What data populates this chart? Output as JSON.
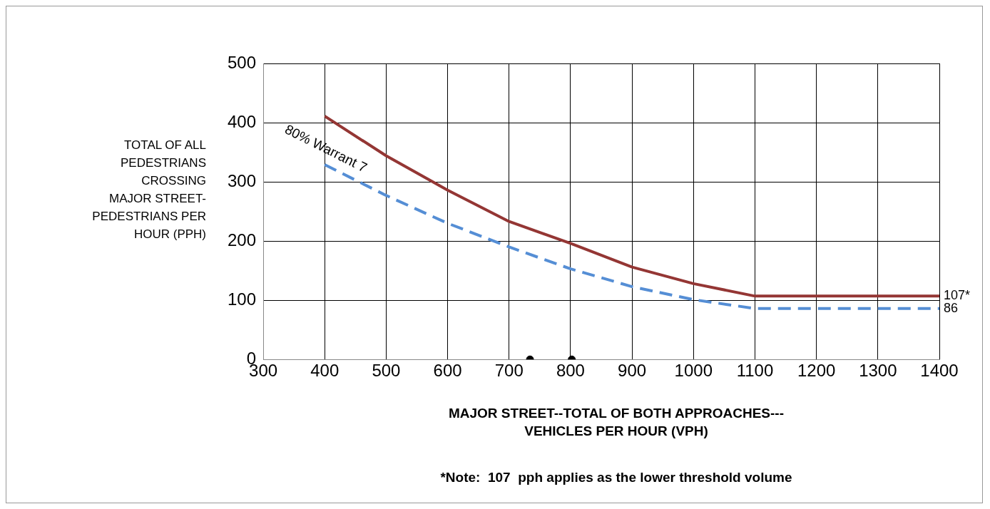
{
  "chart_data": {
    "type": "line",
    "xlabel": "MAJOR STREET--TOTAL OF BOTH APPROACHES---\nVEHICLES PER HOUR (VPH)",
    "ylabel": "TOTAL OF ALL\nPEDESTRIANS\nCROSSING\nMAJOR STREET-\nPEDESTRIANS PER\nHOUR (PPH)",
    "series": [
      {
        "color": "#943634",
        "line_style": "solid",
        "x": [
          400,
          500,
          600,
          700,
          800,
          900,
          1000,
          1100,
          1400
        ],
        "values": [
          411,
          344,
          286,
          233,
          196,
          156,
          128,
          107,
          107
        ],
        "value_labels": [
          null,
          null,
          null,
          null,
          null,
          null,
          null,
          null,
          "107*"
        ]
      },
      {
        "name": "80% Warrant 7",
        "color": "#558ed5",
        "line_style": "dashed",
        "x": [
          400,
          500,
          600,
          700,
          800,
          900,
          1000,
          1100,
          1400
        ],
        "values": [
          329,
          277,
          230,
          190,
          153,
          123,
          101,
          86,
          86
        ],
        "value_labels": [
          null,
          null,
          null,
          null,
          null,
          null,
          null,
          null,
          "86"
        ]
      },
      {
        "type": "scatter",
        "color": "#000000",
        "marker": "circle",
        "x": [
          734,
          802
        ],
        "values": [
          0,
          0
        ]
      }
    ],
    "xlim": [
      300,
      1400
    ],
    "xticks": [
      300,
      400,
      500,
      600,
      700,
      800,
      900,
      1000,
      1100,
      1200,
      1300,
      1400
    ],
    "ylim": [
      0,
      500
    ],
    "yticks": [
      0,
      100,
      200,
      300,
      400,
      500
    ],
    "grid": true,
    "legend": false,
    "marker": "none",
    "annotations": [
      "*Note:  107  pph applies as the lower threshold volume"
    ]
  }
}
